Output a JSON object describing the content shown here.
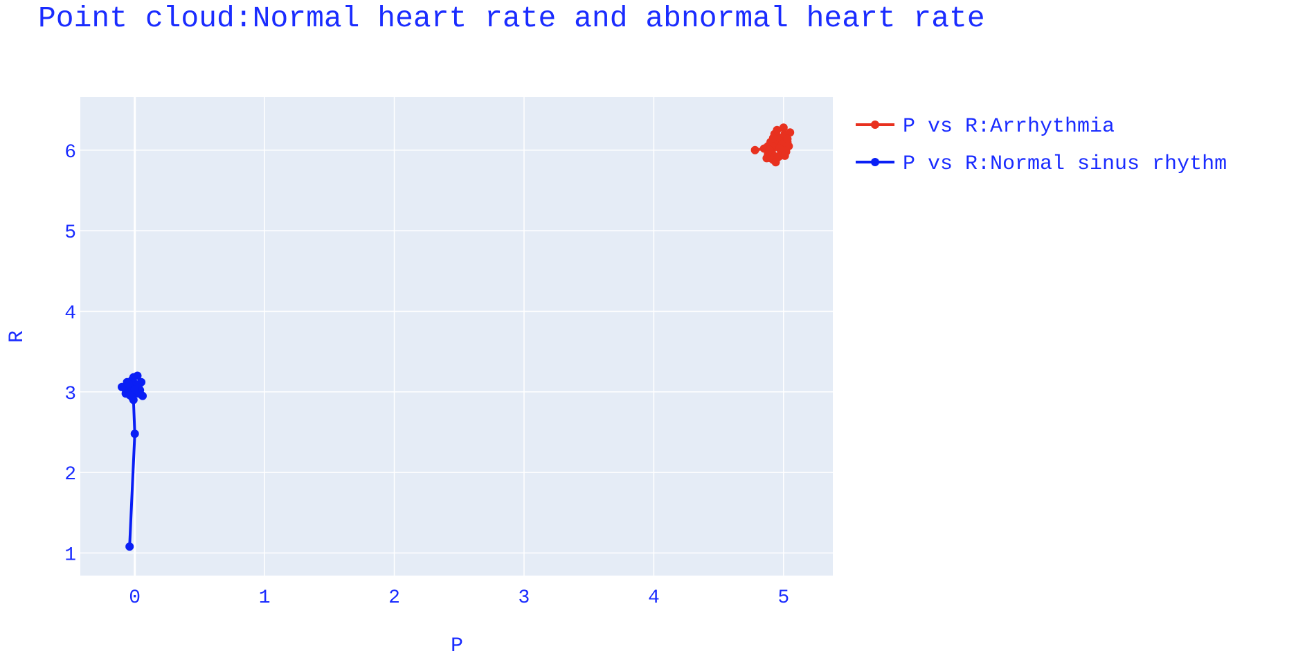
{
  "chart_data": {
    "type": "scatter",
    "title": "Point cloud:Normal heart rate and abnormal heart rate",
    "xlabel": "P",
    "ylabel": "R",
    "xlim": [
      -0.42,
      5.38
    ],
    "ylim": [
      0.72,
      6.66
    ],
    "x_ticks": [
      0,
      1,
      2,
      3,
      4,
      5
    ],
    "y_ticks": [
      1,
      2,
      3,
      4,
      5,
      6
    ],
    "grid": true,
    "legend_position": "top-right",
    "colors": {
      "text": "#1a2cff",
      "plot_bg": "#e5ecf6",
      "grid": "#ffffff"
    },
    "series": [
      {
        "name": "P vs R:Arrhythmia",
        "color": "#e8311f",
        "mode": "lines+markers",
        "points": [
          [
            4.78,
            6.0
          ],
          [
            4.85,
            6.02
          ],
          [
            4.88,
            5.95
          ],
          [
            4.9,
            5.9
          ],
          [
            4.92,
            5.88
          ],
          [
            4.88,
            6.05
          ],
          [
            4.9,
            6.1
          ],
          [
            4.93,
            6.2
          ],
          [
            4.95,
            6.25
          ],
          [
            4.98,
            6.15
          ],
          [
            5.0,
            6.28
          ],
          [
            5.02,
            6.18
          ],
          [
            5.05,
            6.22
          ],
          [
            5.03,
            6.1
          ],
          [
            5.04,
            6.05
          ],
          [
            5.0,
            6.0
          ],
          [
            4.98,
            5.95
          ],
          [
            4.95,
            5.92
          ],
          [
            5.02,
            5.98
          ],
          [
            4.93,
            6.05
          ],
          [
            4.96,
            6.12
          ],
          [
            4.99,
            6.08
          ],
          [
            4.91,
            5.97
          ],
          [
            4.87,
            5.9
          ],
          [
            4.94,
            5.85
          ],
          [
            5.01,
            5.93
          ],
          [
            4.97,
            6.02
          ],
          [
            4.92,
            6.15
          ],
          [
            4.89,
            6.0
          ],
          [
            5.03,
            6.14
          ]
        ]
      },
      {
        "name": "P vs R:Normal sinus rhythm",
        "color": "#0a1ff5",
        "mode": "lines+markers",
        "points": [
          [
            -0.04,
            1.08
          ],
          [
            0.0,
            2.48
          ],
          [
            -0.01,
            2.9
          ],
          [
            -0.05,
            3.0
          ],
          [
            -0.08,
            3.05
          ],
          [
            -0.1,
            3.06
          ],
          [
            -0.06,
            3.12
          ],
          [
            -0.02,
            3.15
          ],
          [
            0.02,
            3.2
          ],
          [
            0.05,
            3.12
          ],
          [
            0.03,
            3.05
          ],
          [
            0.06,
            2.95
          ],
          [
            0.01,
            3.0
          ],
          [
            -0.03,
            3.08
          ],
          [
            -0.07,
            2.98
          ],
          [
            0.0,
            3.1
          ],
          [
            0.04,
            3.02
          ],
          [
            -0.04,
            2.96
          ],
          [
            0.02,
            3.08
          ],
          [
            -0.01,
            3.18
          ],
          [
            0.03,
            2.98
          ],
          [
            -0.05,
            3.1
          ],
          [
            0.0,
            3.03
          ],
          [
            -0.02,
            2.93
          ]
        ]
      }
    ]
  }
}
